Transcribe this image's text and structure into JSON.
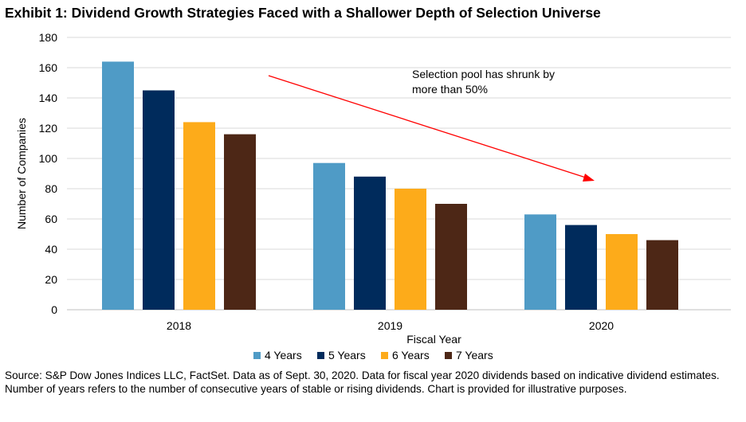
{
  "title": "Exhibit 1: Dividend Growth Strategies Faced with a Shallower Depth of Selection Universe",
  "source": "Source: S&P Dow Jones Indices LLC, FactSet. Data as of Sept. 30, 2020. Data for fiscal year 2020 dividends based on indicative dividend estimates. Number of years refers to the number of consecutive years of stable or rising dividends. Chart is provided for illustrative purposes.",
  "chart_data": {
    "type": "bar",
    "title": "Exhibit 1: Dividend Growth Strategies Faced with a Shallower Depth of Selection Universe",
    "xlabel": "Fiscal Year",
    "ylabel": "Number of Companies",
    "ylim": [
      0,
      180
    ],
    "yticks": [
      0,
      20,
      40,
      60,
      80,
      100,
      120,
      140,
      160,
      180
    ],
    "categories": [
      "2018",
      "2019",
      "2020"
    ],
    "series": [
      {
        "name": "4 Years",
        "color": "#4f9bc6",
        "values": [
          164,
          97,
          63
        ]
      },
      {
        "name": "5 Years",
        "color": "#002b5c",
        "values": [
          145,
          88,
          56
        ]
      },
      {
        "name": "6 Years",
        "color": "#fdab1a",
        "values": [
          124,
          80,
          50
        ]
      },
      {
        "name": "7 Years",
        "color": "#4d2716",
        "values": [
          116,
          70,
          46
        ]
      }
    ],
    "grid": true,
    "legend": "bottom",
    "annotation": {
      "text_lines": [
        "Selection pool has shrunk by",
        "more than 50%"
      ],
      "arrow_color": "#ff0000"
    }
  }
}
